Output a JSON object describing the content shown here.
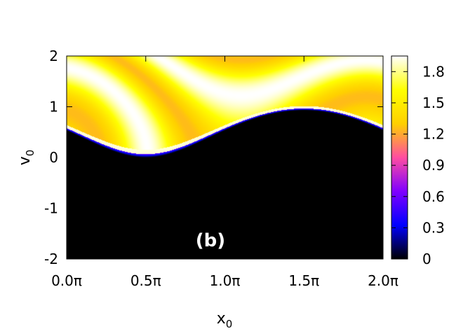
{
  "chart_data": {
    "type": "heatmap",
    "title": "",
    "panel_label": "(b)",
    "xlabel": {
      "base": "x",
      "sub": "0"
    },
    "ylabel": {
      "base": "v",
      "sub": "0"
    },
    "x_range": [
      0,
      6.2832
    ],
    "y_range": [
      -2,
      2
    ],
    "x_ticks": [
      {
        "value": 0.0,
        "label": "0.0π"
      },
      {
        "value": 1.5708,
        "label": "0.5π"
      },
      {
        "value": 3.1416,
        "label": "1.0π"
      },
      {
        "value": 4.7124,
        "label": "1.5π"
      },
      {
        "value": 6.2832,
        "label": "2.0π"
      }
    ],
    "y_ticks": [
      {
        "value": -2,
        "label": "-2"
      },
      {
        "value": -1,
        "label": "-1"
      },
      {
        "value": 0,
        "label": "0"
      },
      {
        "value": 1,
        "label": "1"
      },
      {
        "value": 2,
        "label": "2"
      }
    ],
    "colorbar": {
      "range": [
        0,
        1.95
      ],
      "ticks": [
        {
          "value": 0,
          "label": "0"
        },
        {
          "value": 0.3,
          "label": "0.3"
        },
        {
          "value": 0.6,
          "label": "0.6"
        },
        {
          "value": 0.9,
          "label": "0.9"
        },
        {
          "value": 1.2,
          "label": "1.2"
        },
        {
          "value": 1.5,
          "label": "1.5"
        },
        {
          "value": 1.8,
          "label": "1.8"
        }
      ],
      "palette": [
        "#000000",
        "#0000ff",
        "#8000ff",
        "#ff4da0",
        "#ffd000",
        "#ffff00",
        "#ffffff"
      ]
    },
    "legend": "none",
    "grid": false
  }
}
